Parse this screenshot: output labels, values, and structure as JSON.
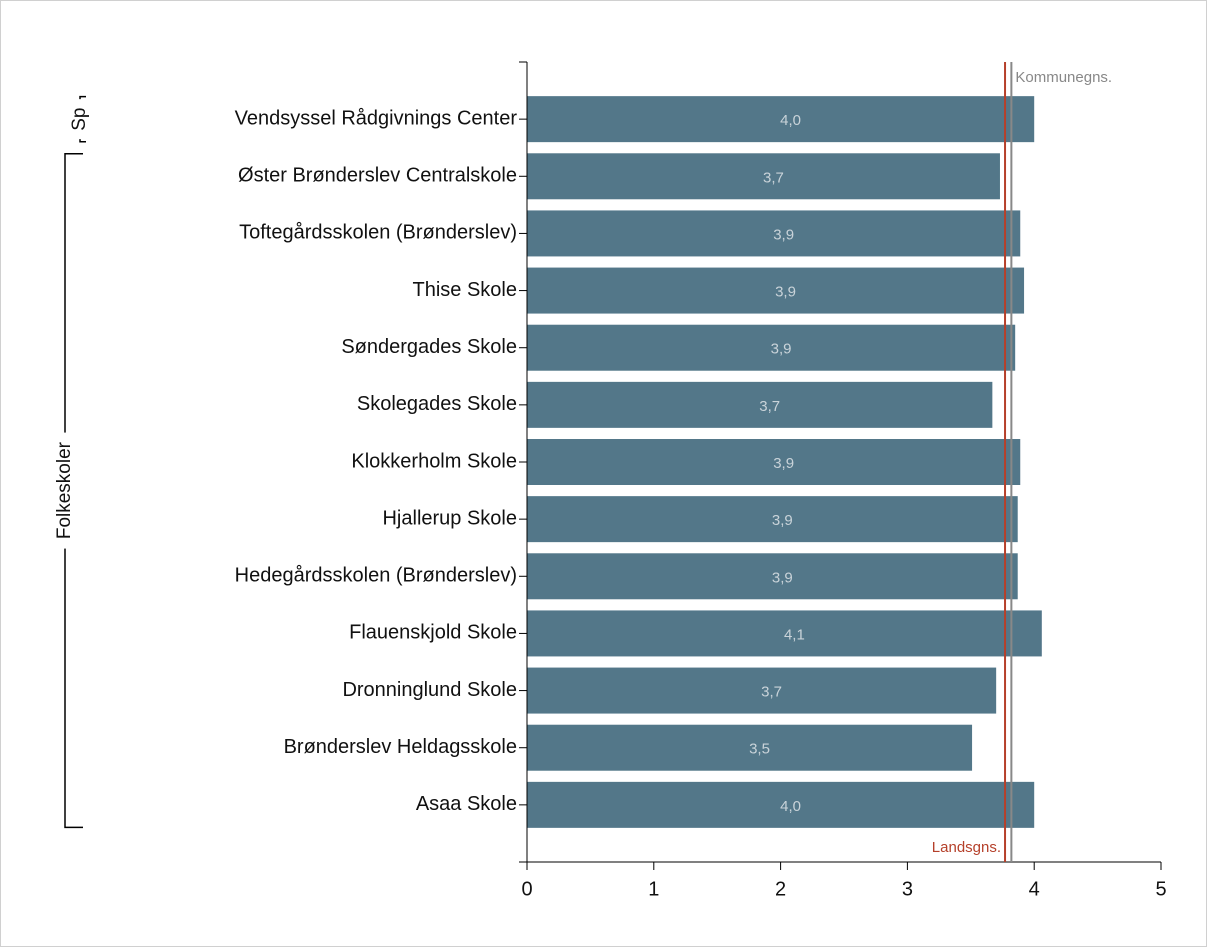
{
  "chart_data": {
    "type": "bar",
    "orientation": "horizontal",
    "categories": [
      "Vendsyssel Rådgivnings Center",
      "Øster Brønderslev Centralskole",
      "Toftegårdsskolen (Brønderslev)",
      "Thise Skole",
      "Søndergades Skole",
      "Skolegades Skole",
      "Klokkerholm Skole",
      "Hjallerup Skole",
      "Hedegårdsskolen (Brønderslev)",
      "Flauenskjold Skole",
      "Dronninglund Skole",
      "Brønderslev Heldagsskole",
      "Asaa Skole"
    ],
    "values": [
      4.0,
      3.73,
      3.89,
      3.92,
      3.85,
      3.67,
      3.89,
      3.87,
      3.87,
      4.06,
      3.7,
      3.51,
      4.0
    ],
    "value_labels": [
      "4,0",
      "3,7",
      "3,9",
      "3,9",
      "3,9",
      "3,7",
      "3,9",
      "3,9",
      "3,9",
      "4,1",
      "3,7",
      "3,5",
      "4,0"
    ],
    "color": "#537789",
    "xlim": [
      0,
      5
    ],
    "xticks": [
      0,
      1,
      2,
      3,
      4,
      5
    ],
    "reference_lines": [
      {
        "name": "Landsgns.",
        "value": 3.77,
        "color": "#b5402a",
        "label_position": "bottom"
      },
      {
        "name": "Kommunegns.",
        "value": 3.82,
        "color": "#888888",
        "label_position": "top"
      }
    ],
    "groups": [
      {
        "label": "Sp",
        "size": 1
      },
      {
        "label": "Folkeskoler",
        "size": 12
      }
    ]
  }
}
